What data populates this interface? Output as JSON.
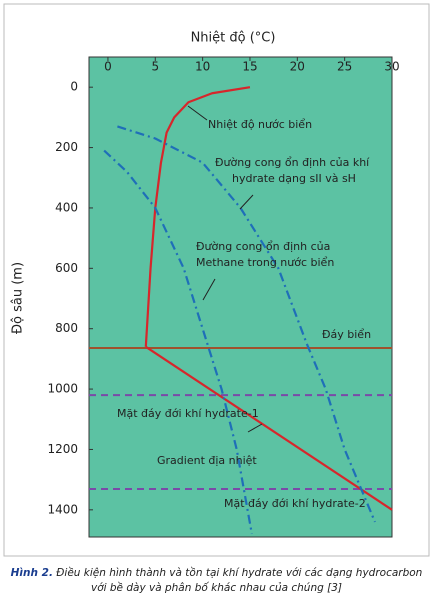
{
  "chart_data": {
    "type": "line",
    "x_label": "Nhiệt độ (°C)",
    "y_label": "Độ sâu (m)",
    "xlim": [
      -2,
      30
    ],
    "xticks": [
      0,
      5,
      10,
      15,
      20,
      25,
      30
    ],
    "ylim": [
      -100,
      1490
    ],
    "yticks": [
      0,
      200,
      400,
      600,
      800,
      1000,
      1200,
      1400
    ],
    "y_inverted": true,
    "x_axis_position": "top",
    "background": "#5cc2a3",
    "series": [
      {
        "name": "Nhiệt độ nước biển",
        "color": "#d7262b",
        "style": "solid",
        "x": [
          15,
          11,
          8.5,
          7,
          6.2,
          5.6,
          5,
          4.5,
          4
        ],
        "values": [
          0,
          20,
          50,
          100,
          150,
          250,
          400,
          600,
          860
        ]
      },
      {
        "name": "Gradient địa nhiệt",
        "color": "#d7262b",
        "style": "solid",
        "x": [
          4,
          30
        ],
        "values": [
          860,
          1400
        ]
      },
      {
        "name": "Đường cong ổn định của khí hydrate dạng sII và sH",
        "color": "#1f6fb8",
        "style": "dashdot",
        "x": [
          1,
          5,
          10,
          14,
          18,
          21,
          23,
          25,
          28.2
        ],
        "values": [
          130,
          170,
          250,
          400,
          600,
          850,
          1000,
          1200,
          1440
        ]
      },
      {
        "name": "Đường cong ổn định của Methane trong nước biển",
        "color": "#1f6fb8",
        "style": "dashdot",
        "x": [
          -0.4,
          2,
          5,
          8,
          10,
          12,
          13.6,
          15.2
        ],
        "values": [
          210,
          280,
          400,
          600,
          800,
          1000,
          1200,
          1480
        ]
      }
    ],
    "reference_lines": [
      {
        "value": 864,
        "color": "#a0522d",
        "style": "solid"
      },
      {
        "value": 1020,
        "color": "#7a4aa8",
        "style": "dashed"
      },
      {
        "value": 1331,
        "color": "#7a4aa8",
        "style": "dashed"
      }
    ],
    "annotations": [
      [
        "Nhiệt độ nước biển"
      ],
      [
        "Đường cong ổn định của khí",
        "hydrate dạng sII và sH"
      ],
      [
        "Đường cong ổn định của",
        "Methane trong nước biển"
      ],
      [
        "Đáy biển"
      ],
      [
        "Mặt đáy đới khí hydrate-1"
      ],
      [
        "Gradient địa nhiệt"
      ],
      [
        "Mặt đáy đới khí hydrate-2"
      ]
    ]
  },
  "caption": {
    "label": "Hình 2.",
    "text": "Điều kiện hình thành và tồn tại khí hydrate với các dạng hydrocarbon với bề dày và phân bố khác nhau của chúng [3]"
  }
}
